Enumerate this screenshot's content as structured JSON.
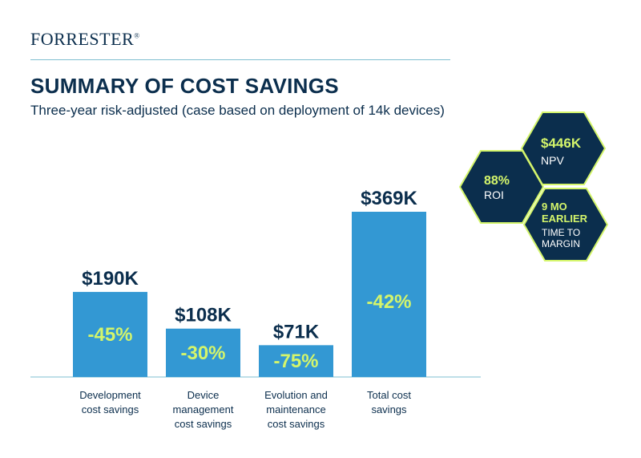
{
  "brand": {
    "name": "FORRESTER",
    "reg": "®"
  },
  "header": {
    "title": "SUMMARY OF COST SAVINGS",
    "subtitle": "Three-year risk-adjusted (case based on deployment of 14k devices)"
  },
  "colors": {
    "bar": "#3398d3",
    "navy": "#0b2e4d",
    "accent": "#d4f56b",
    "axis": "#7fbfd1"
  },
  "chart_data": {
    "type": "bar",
    "title": "SUMMARY OF COST SAVINGS",
    "subtitle": "Three-year risk-adjusted (case based on deployment of 14k devices)",
    "categories": [
      [
        "Development",
        "cost savings"
      ],
      [
        "Device",
        "management",
        "cost savings"
      ],
      [
        "Evolution and",
        "maintenance",
        "cost savings"
      ],
      [
        "Total cost",
        "savings"
      ]
    ],
    "values": [
      190,
      108,
      71,
      369
    ],
    "value_labels": [
      "$190K",
      "$108K",
      "$71K",
      "$369K"
    ],
    "percent_labels": [
      "-45%",
      "-30%",
      "-75%",
      "-42%"
    ],
    "units": "$K",
    "ylim": [
      0,
      369
    ],
    "grid": false,
    "legend": "none"
  },
  "metrics": [
    {
      "name": "npv",
      "value": "$446K",
      "label": "NPV"
    },
    {
      "name": "roi",
      "value": "88%",
      "label": "ROI"
    },
    {
      "name": "time-to-margin",
      "value": "9 MO EARLIER",
      "value_lines": [
        "9 MO",
        "EARLIER"
      ],
      "label_lines": [
        "TIME TO",
        "MARGIN"
      ]
    }
  ]
}
